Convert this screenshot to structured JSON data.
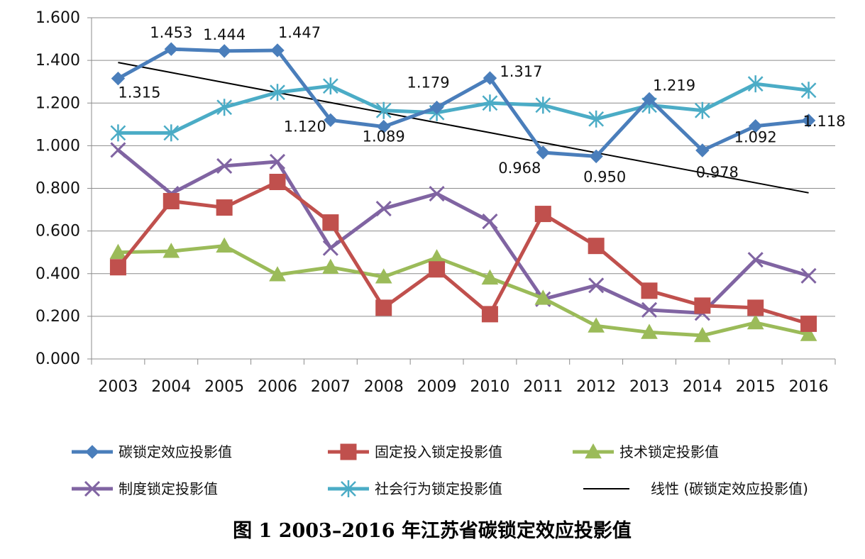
{
  "chart_data": {
    "type": "line",
    "title": "",
    "caption": "图 1  2003–2016 年江苏省碳锁定效应投影值",
    "xlabel": "",
    "ylabel": "",
    "ylim": [
      0,
      1.6
    ],
    "yticks": [
      "0.000",
      "0.200",
      "0.400",
      "0.600",
      "0.800",
      "1.000",
      "1.200",
      "1.400",
      "1.600"
    ],
    "grid": true,
    "legend_position": "bottom",
    "categories": [
      "2003",
      "2004",
      "2005",
      "2006",
      "2007",
      "2008",
      "2009",
      "2010",
      "2011",
      "2012",
      "2013",
      "2014",
      "2015",
      "2016"
    ],
    "series": [
      {
        "name": "碳锁定效应投影值",
        "color": "#4a7ebb",
        "marker": "diamond",
        "values": [
          1.315,
          1.453,
          1.444,
          1.447,
          1.12,
          1.089,
          1.179,
          1.317,
          0.968,
          0.95,
          1.219,
          0.978,
          1.092,
          1.118
        ],
        "labels": [
          "1.315",
          "1.453",
          "1.444",
          "1.447",
          "1.120",
          "1.089",
          "1.179",
          "1.317",
          "0.968",
          "0.950",
          "1.219",
          "0.978",
          "1.092",
          "1.118"
        ]
      },
      {
        "name": "固定投入锁定投影值",
        "color": "#c0504d",
        "marker": "square",
        "values": [
          0.43,
          0.74,
          0.71,
          0.83,
          0.64,
          0.24,
          0.42,
          0.21,
          0.68,
          0.53,
          0.32,
          0.25,
          0.24,
          0.165
        ]
      },
      {
        "name": "技术锁定投影值",
        "color": "#9bbb59",
        "marker": "triangle",
        "values": [
          0.5,
          0.505,
          0.53,
          0.395,
          0.43,
          0.385,
          0.475,
          0.38,
          0.285,
          0.155,
          0.125,
          0.11,
          0.17,
          0.115
        ]
      },
      {
        "name": "制度锁定投影值",
        "color": "#8064a2",
        "marker": "x",
        "values": [
          0.98,
          0.775,
          0.905,
          0.925,
          0.52,
          0.705,
          0.775,
          0.645,
          0.28,
          0.345,
          0.23,
          0.215,
          0.465,
          0.39
        ]
      },
      {
        "name": "社会行为锁定投影值",
        "color": "#4bacc6",
        "marker": "star",
        "values": [
          1.06,
          1.06,
          1.18,
          1.25,
          1.28,
          1.165,
          1.155,
          1.2,
          1.19,
          1.125,
          1.19,
          1.165,
          1.29,
          1.26
        ]
      },
      {
        "name": "线性 (碳锁定效应投影值)",
        "color": "#000000",
        "marker": "none",
        "trend_of": 0,
        "values": [
          1.39,
          1.343,
          1.296,
          1.249,
          1.202,
          1.155,
          1.108,
          1.061,
          1.014,
          0.967,
          0.92,
          0.873,
          0.826,
          0.779
        ]
      }
    ]
  }
}
